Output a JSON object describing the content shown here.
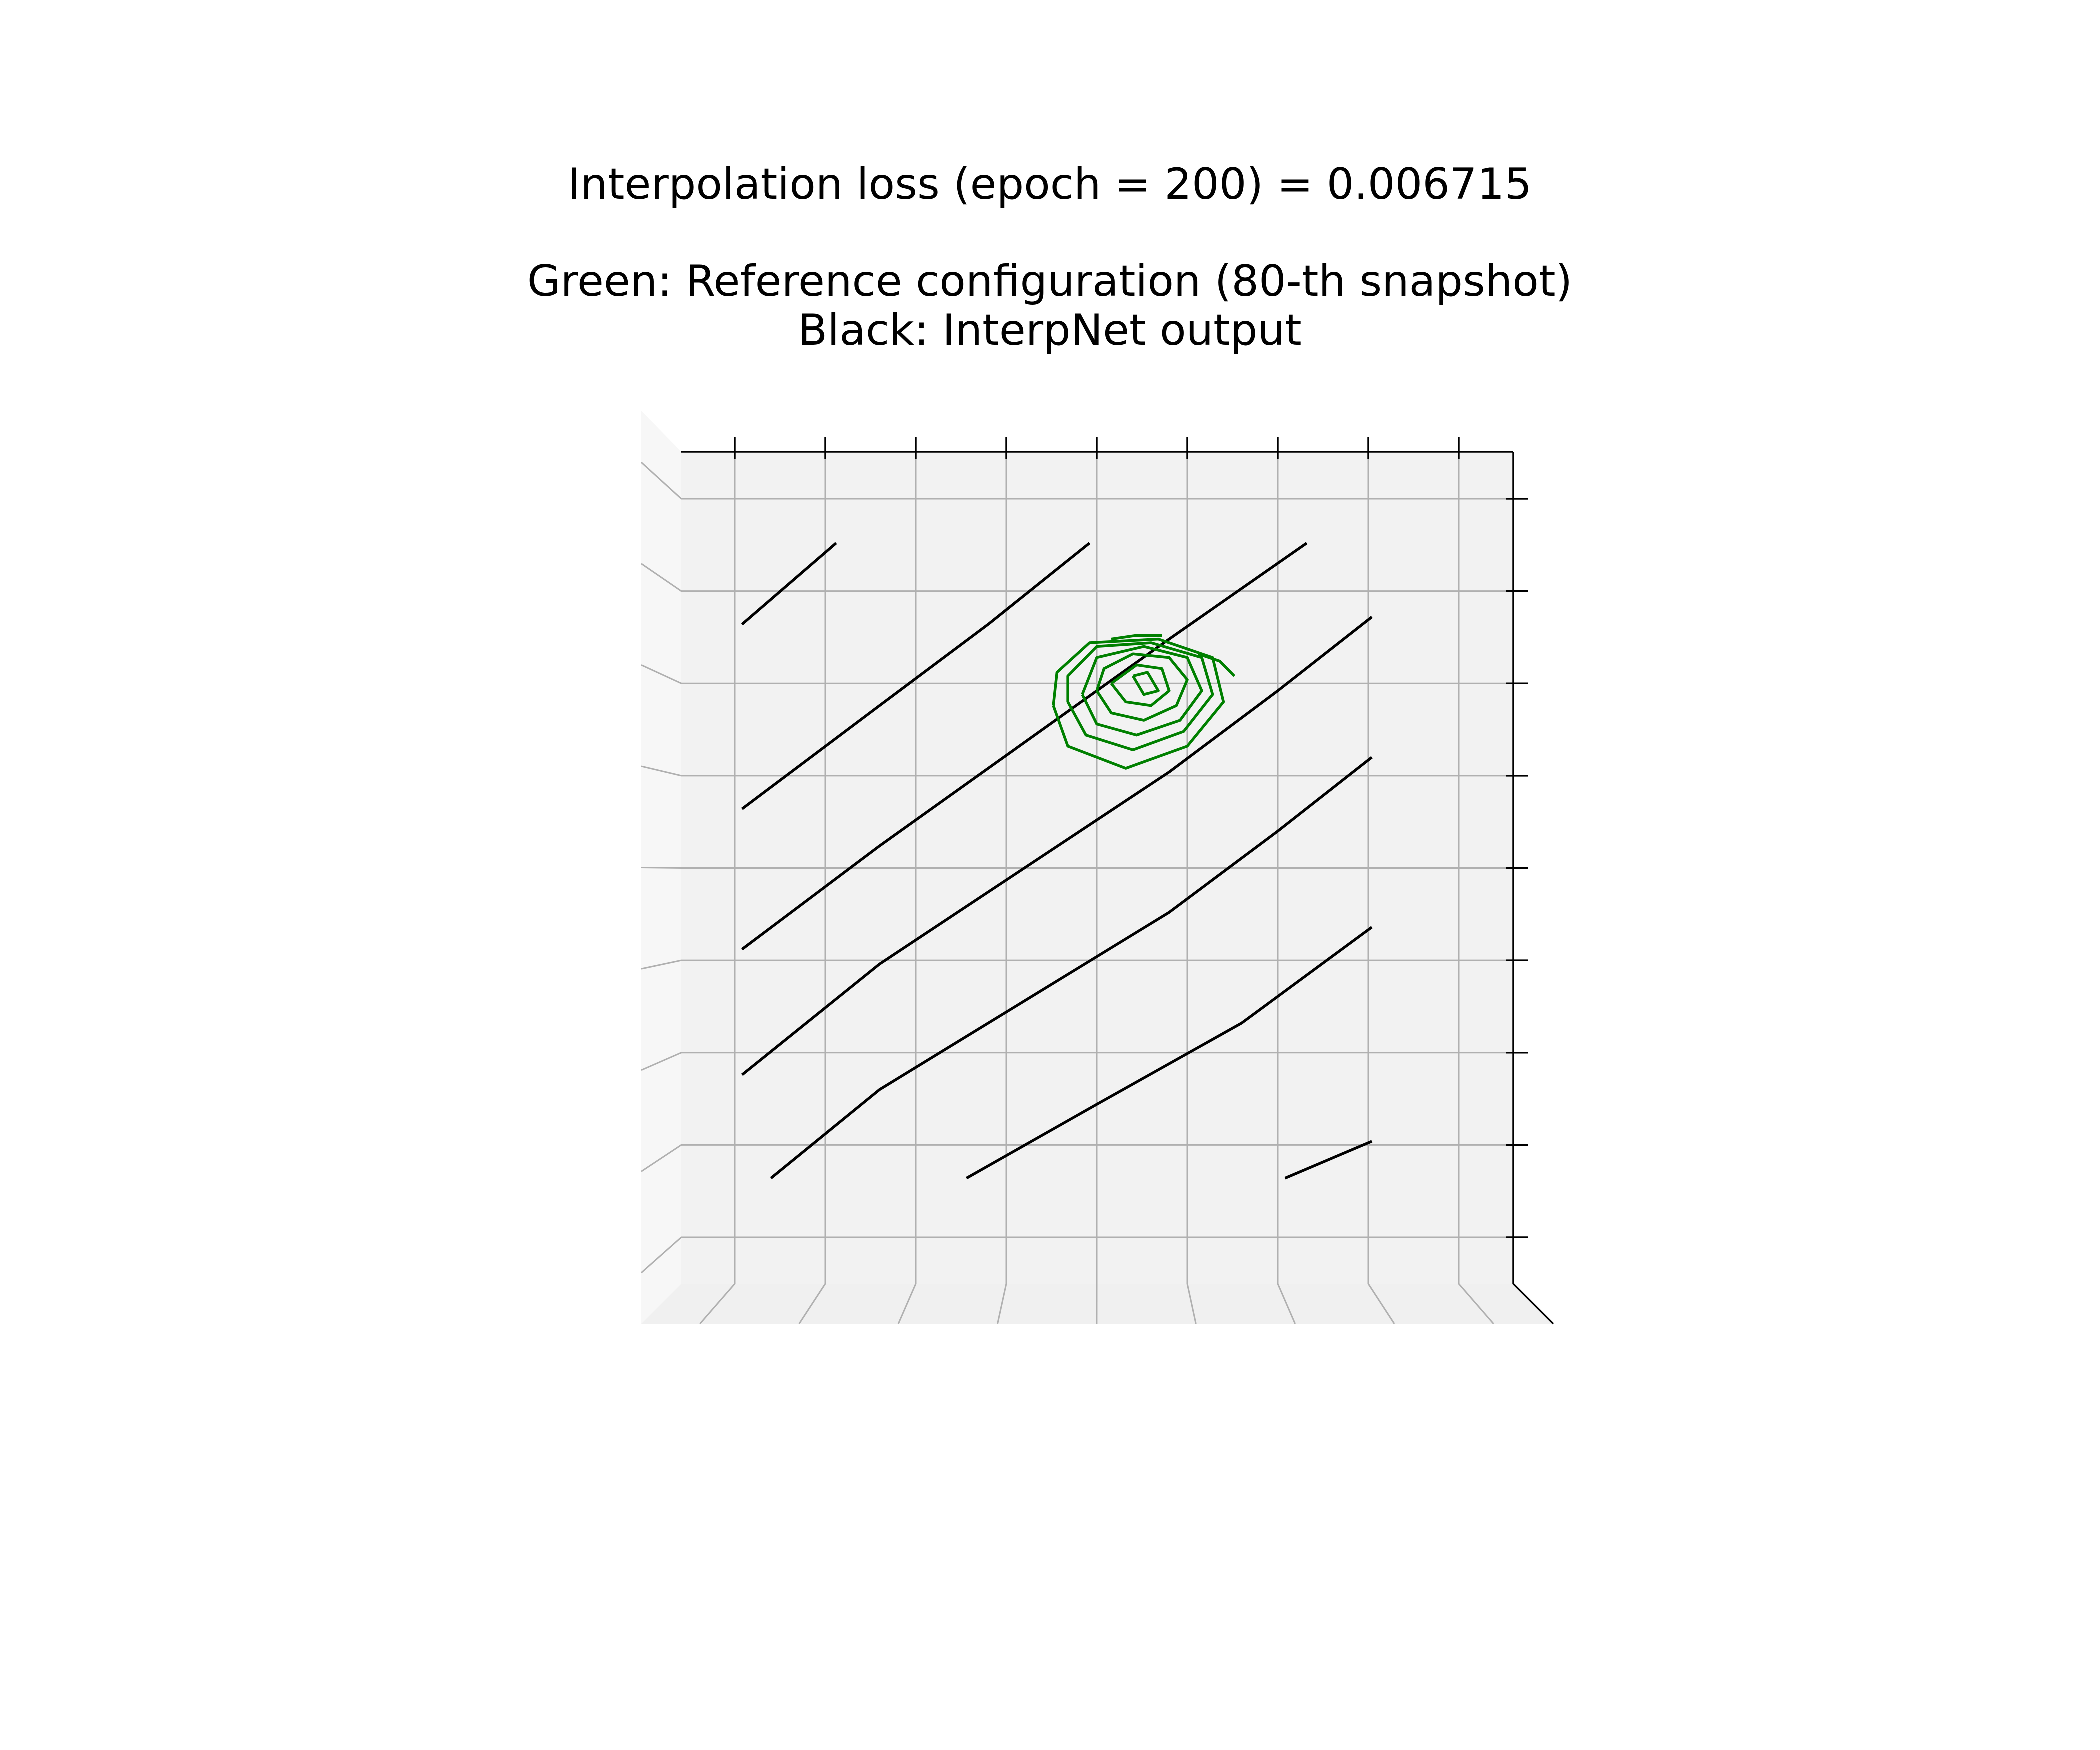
{
  "chart_data": {
    "type": "contour",
    "title": "Interpolation loss (epoch = 200) = 0.006715",
    "subtitle_lines": [
      "Green: Reference configuration (80-th snapshot)",
      "Black: InterpNet output"
    ],
    "xlabel": "",
    "ylabel": "",
    "x_range": [
      0,
      1
    ],
    "y_range": [
      0,
      1
    ],
    "tick_labels_shown": false,
    "grid": true,
    "view": "3D axes seen from top",
    "colors": {
      "reference": "#008000",
      "output": "#000000",
      "pane": "#f2f2f2",
      "grid": "#b0b0b0"
    },
    "series": [
      {
        "name": "Green: Reference configuration (80-th snapshot)",
        "color": "#008000",
        "contours": [
          [
            [
              0.55,
              0.76
            ],
            [
              0.565,
              0.735
            ],
            [
              0.585,
              0.74
            ],
            [
              0.57,
              0.765
            ],
            [
              0.55,
              0.76
            ]
          ],
          [
            [
              0.52,
              0.75
            ],
            [
              0.54,
              0.725
            ],
            [
              0.575,
              0.72
            ],
            [
              0.6,
              0.74
            ],
            [
              0.59,
              0.77
            ],
            [
              0.555,
              0.775
            ],
            [
              0.52,
              0.75
            ]
          ],
          [
            [
              0.5,
              0.74
            ],
            [
              0.52,
              0.71
            ],
            [
              0.565,
              0.7
            ],
            [
              0.61,
              0.72
            ],
            [
              0.625,
              0.755
            ],
            [
              0.6,
              0.785
            ],
            [
              0.55,
              0.79
            ],
            [
              0.51,
              0.77
            ],
            [
              0.5,
              0.74
            ]
          ],
          [
            [
              0.48,
              0.735
            ],
            [
              0.5,
              0.695
            ],
            [
              0.555,
              0.68
            ],
            [
              0.615,
              0.7
            ],
            [
              0.645,
              0.74
            ],
            [
              0.625,
              0.785
            ],
            [
              0.565,
              0.8
            ],
            [
              0.5,
              0.785
            ],
            [
              0.48,
              0.735
            ]
          ],
          [
            [
              0.46,
              0.725
            ],
            [
              0.485,
              0.68
            ],
            [
              0.55,
              0.66
            ],
            [
              0.62,
              0.685
            ],
            [
              0.66,
              0.735
            ],
            [
              0.645,
              0.785
            ],
            [
              0.575,
              0.805
            ],
            [
              0.5,
              0.8
            ],
            [
              0.46,
              0.76
            ],
            [
              0.46,
              0.725
            ]
          ],
          [
            [
              0.44,
              0.72
            ],
            [
              0.46,
              0.665
            ],
            [
              0.54,
              0.635
            ],
            [
              0.625,
              0.665
            ],
            [
              0.675,
              0.725
            ],
            [
              0.66,
              0.785
            ],
            [
              0.585,
              0.81
            ],
            [
              0.49,
              0.805
            ],
            [
              0.445,
              0.765
            ],
            [
              0.44,
              0.72
            ]
          ],
          [
            [
              0.52,
              0.81
            ],
            [
              0.555,
              0.815
            ],
            [
              0.59,
              0.815
            ]
          ],
          [
            [
              0.64,
              0.79
            ],
            [
              0.67,
              0.78
            ],
            [
              0.69,
              0.76
            ]
          ]
        ]
      },
      {
        "name": "Black: InterpNet output",
        "color": "#000000",
        "contours": [
          [
            [
              0.01,
              0.83
            ],
            [
              0.14,
              0.94
            ]
          ],
          [
            [
              0.01,
              0.58
            ],
            [
              0.2,
              0.72
            ],
            [
              0.35,
              0.83
            ],
            [
              0.49,
              0.94
            ]
          ],
          [
            [
              0.01,
              0.39
            ],
            [
              0.2,
              0.53
            ],
            [
              0.4,
              0.67
            ],
            [
              0.6,
              0.81
            ],
            [
              0.79,
              0.94
            ]
          ],
          [
            [
              0.01,
              0.22
            ],
            [
              0.2,
              0.37
            ],
            [
              0.4,
              0.5
            ],
            [
              0.6,
              0.63
            ],
            [
              0.75,
              0.74
            ],
            [
              0.88,
              0.84
            ]
          ],
          [
            [
              0.05,
              0.08
            ],
            [
              0.2,
              0.2
            ],
            [
              0.4,
              0.32
            ],
            [
              0.6,
              0.44
            ],
            [
              0.75,
              0.55
            ],
            [
              0.88,
              0.65
            ]
          ],
          [
            [
              0.32,
              0.08
            ],
            [
              0.5,
              0.18
            ],
            [
              0.7,
              0.29
            ],
            [
              0.88,
              0.42
            ]
          ],
          [
            [
              0.76,
              0.08
            ],
            [
              0.88,
              0.13
            ]
          ]
        ]
      }
    ]
  }
}
